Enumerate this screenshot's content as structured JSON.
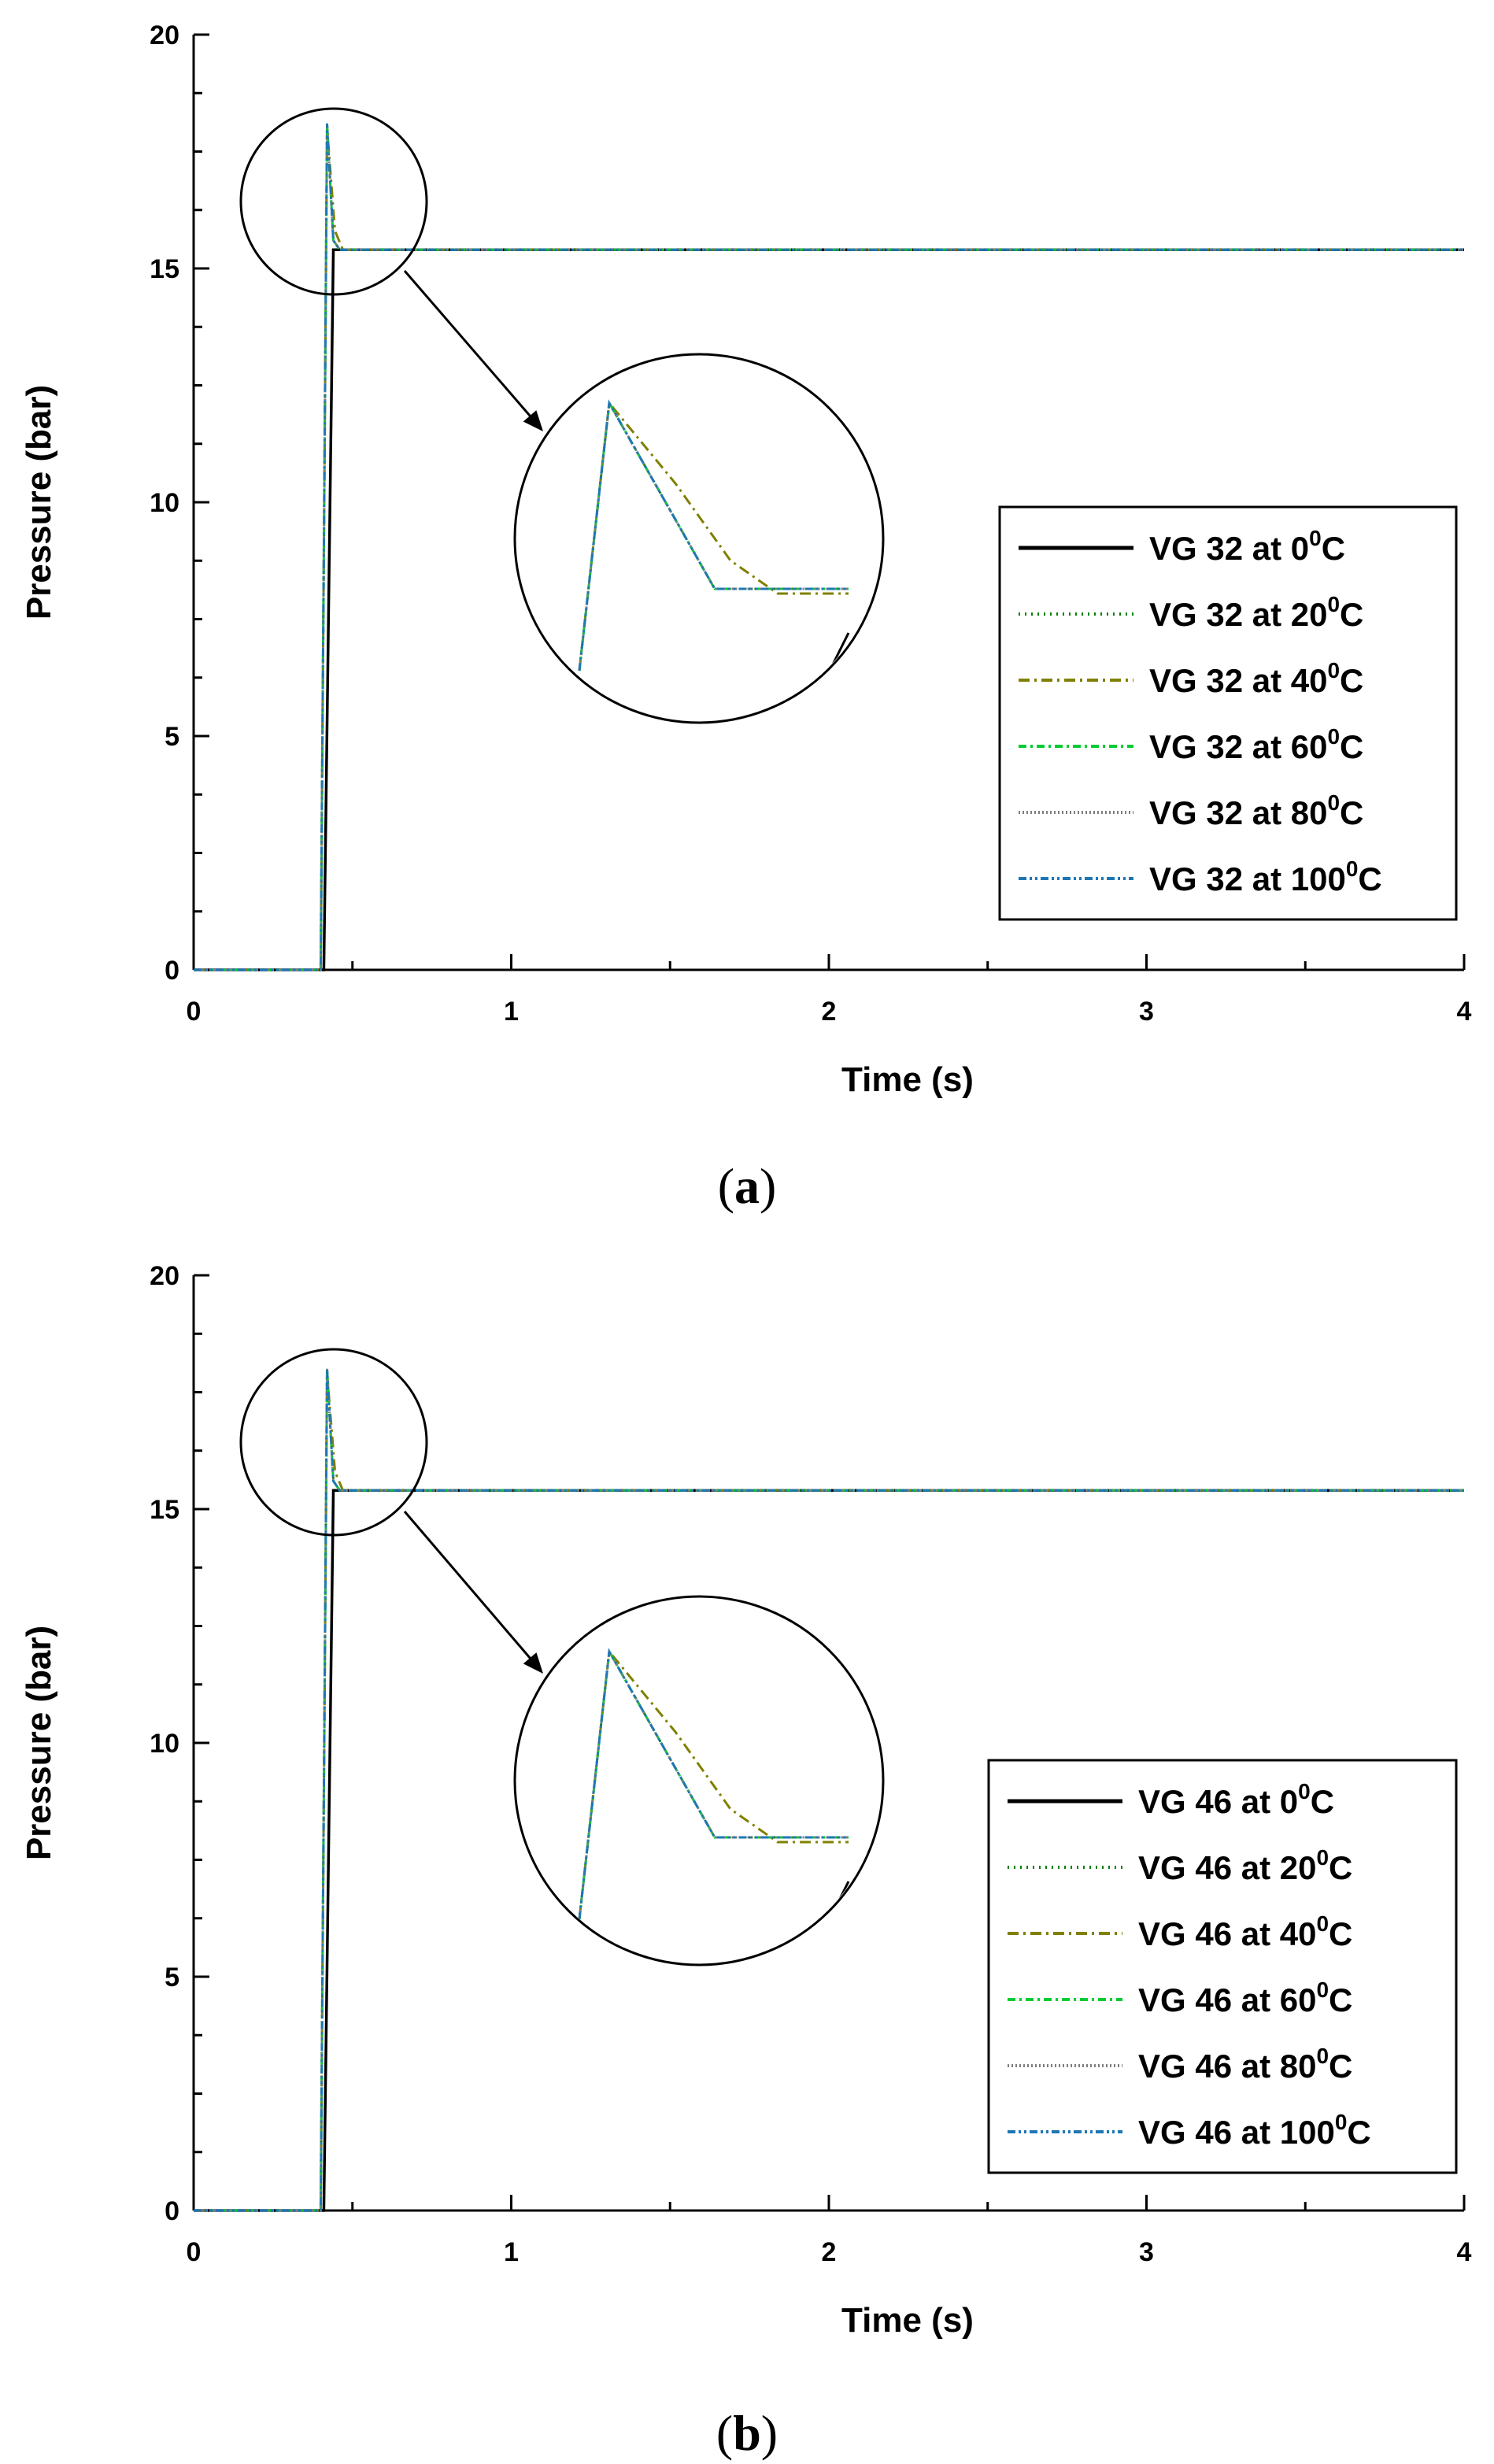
{
  "chart_data": [
    {
      "type": "line",
      "panel_label": {
        "open": "(",
        "letter": "a",
        "close": ")"
      },
      "xlabel": "Time (s)",
      "ylabel": "Pressure (bar)",
      "xlim": [
        0,
        4
      ],
      "ylim": [
        0,
        20
      ],
      "xticks": [
        "0",
        "1",
        "2",
        "3",
        "4"
      ],
      "yticks": [
        "0",
        "5",
        "10",
        "15",
        "20"
      ],
      "legend_position": "right",
      "inset": "zoomed view of peak region",
      "series": [
        {
          "name": "VG 32 at 0",
          "sup": "0",
          "unit": "C",
          "color": "#000000",
          "dash": "",
          "points": [
            [
              0,
              0
            ],
            [
              0.41,
              0
            ],
            [
              0.44,
              15.4
            ],
            [
              4,
              15.4
            ]
          ]
        },
        {
          "name": "VG 32 at 20",
          "sup": "0",
          "unit": "C",
          "color": "#008000",
          "dash": "2,6",
          "points": [
            [
              0,
              0
            ],
            [
              0.4,
              0
            ],
            [
              0.42,
              18.1
            ],
            [
              0.44,
              15.6
            ],
            [
              0.46,
              15.4
            ],
            [
              4,
              15.4
            ]
          ]
        },
        {
          "name": "VG 32 at 40",
          "sup": "0",
          "unit": "C",
          "color": "#808000",
          "dash": "14,6,3,6",
          "points": [
            [
              0,
              0
            ],
            [
              0.4,
              0
            ],
            [
              0.42,
              18.0
            ],
            [
              0.445,
              15.8
            ],
            [
              0.47,
              15.4
            ],
            [
              4,
              15.4
            ]
          ]
        },
        {
          "name": "VG 32 at 60",
          "sup": "0",
          "unit": "C",
          "color": "#00cc33",
          "dash": "10,5,3,5",
          "points": [
            [
              0,
              0
            ],
            [
              0.4,
              0
            ],
            [
              0.42,
              18.1
            ],
            [
              0.44,
              15.6
            ],
            [
              0.46,
              15.4
            ],
            [
              4,
              15.4
            ]
          ]
        },
        {
          "name": "VG 32 at 80",
          "sup": "0",
          "unit": "C",
          "color": "#7f7f7f",
          "dash": "2,3",
          "points": [
            [
              0,
              0
            ],
            [
              0.4,
              0
            ],
            [
              0.42,
              18.1
            ],
            [
              0.44,
              15.6
            ],
            [
              0.46,
              15.4
            ],
            [
              4,
              15.4
            ]
          ]
        },
        {
          "name": "VG 32 at 100",
          "sup": "0",
          "unit": "C",
          "color": "#1f77b4",
          "dash": "10,4,3,4,3,4",
          "points": [
            [
              0,
              0
            ],
            [
              0.4,
              0
            ],
            [
              0.42,
              18.1
            ],
            [
              0.44,
              15.6
            ],
            [
              0.46,
              15.4
            ],
            [
              4,
              15.4
            ]
          ]
        }
      ]
    },
    {
      "type": "line",
      "panel_label": {
        "open": "(",
        "letter": "b",
        "close": ")"
      },
      "xlabel": "Time (s)",
      "ylabel": "Pressure (bar)",
      "xlim": [
        0,
        4
      ],
      "ylim": [
        0,
        20
      ],
      "xticks": [
        "0",
        "1",
        "2",
        "3",
        "4"
      ],
      "yticks": [
        "0",
        "5",
        "10",
        "15",
        "20"
      ],
      "legend_position": "right",
      "inset": "zoomed view of peak region",
      "series": [
        {
          "name": "VG 46 at 0",
          "sup": "0",
          "unit": "C",
          "color": "#000000",
          "dash": "",
          "points": [
            [
              0,
              0
            ],
            [
              0.41,
              0
            ],
            [
              0.44,
              15.4
            ],
            [
              4,
              15.4
            ]
          ]
        },
        {
          "name": "VG 46 at 20",
          "sup": "0",
          "unit": "C",
          "color": "#008000",
          "dash": "2,6",
          "points": [
            [
              0,
              0
            ],
            [
              0.4,
              0
            ],
            [
              0.42,
              18.0
            ],
            [
              0.44,
              15.6
            ],
            [
              0.46,
              15.4
            ],
            [
              4,
              15.4
            ]
          ]
        },
        {
          "name": "VG 46 at 40",
          "sup": "0",
          "unit": "C",
          "color": "#808000",
          "dash": "14,6,3,6",
          "points": [
            [
              0,
              0
            ],
            [
              0.4,
              0
            ],
            [
              0.42,
              17.9
            ],
            [
              0.445,
              15.8
            ],
            [
              0.47,
              15.4
            ],
            [
              4,
              15.4
            ]
          ]
        },
        {
          "name": "VG 46 at 60",
          "sup": "0",
          "unit": "C",
          "color": "#00cc33",
          "dash": "10,5,3,5",
          "points": [
            [
              0,
              0
            ],
            [
              0.4,
              0
            ],
            [
              0.42,
              18.0
            ],
            [
              0.44,
              15.6
            ],
            [
              0.46,
              15.4
            ],
            [
              4,
              15.4
            ]
          ]
        },
        {
          "name": "VG 46 at 80",
          "sup": "0",
          "unit": "C",
          "color": "#7f7f7f",
          "dash": "2,3",
          "points": [
            [
              0,
              0
            ],
            [
              0.4,
              0
            ],
            [
              0.42,
              18.0
            ],
            [
              0.44,
              15.6
            ],
            [
              0.46,
              15.4
            ],
            [
              4,
              15.4
            ]
          ]
        },
        {
          "name": "VG 46 at 100",
          "sup": "0",
          "unit": "C",
          "color": "#1f77b4",
          "dash": "10,4,3,4,3,4",
          "points": [
            [
              0,
              0
            ],
            [
              0.4,
              0
            ],
            [
              0.42,
              18.0
            ],
            [
              0.44,
              15.6
            ],
            [
              0.46,
              15.4
            ],
            [
              4,
              15.4
            ]
          ]
        }
      ]
    }
  ]
}
